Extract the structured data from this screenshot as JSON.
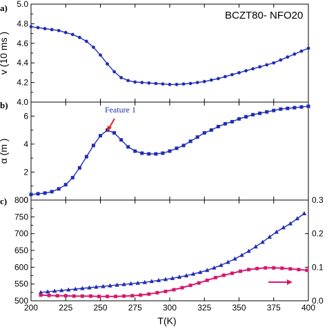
{
  "chart_data": [
    {
      "panel": "a)",
      "type": "line",
      "annotation": "BCZT80- NFO20",
      "ylabel": "v (10 ms )",
      "ylim": [
        4.0,
        5.0
      ],
      "yticks": [
        4.0,
        4.2,
        4.4,
        4.6,
        4.8,
        5.0
      ],
      "xlim": [
        200,
        400
      ],
      "series": [
        {
          "color": "#1f2db3",
          "marker": "circle",
          "x": [
            200,
            205,
            210,
            215,
            220,
            225,
            230,
            235,
            240,
            245,
            250,
            255,
            260,
            265,
            270,
            275,
            280,
            285,
            290,
            295,
            300,
            305,
            310,
            315,
            320,
            325,
            330,
            335,
            340,
            345,
            350,
            355,
            360,
            365,
            370,
            375,
            380,
            385,
            390,
            395,
            400
          ],
          "y": [
            4.77,
            4.76,
            4.75,
            4.74,
            4.73,
            4.71,
            4.69,
            4.66,
            4.62,
            4.56,
            4.48,
            4.39,
            4.31,
            4.25,
            4.22,
            4.205,
            4.2,
            4.195,
            4.19,
            4.185,
            4.18,
            4.18,
            4.185,
            4.19,
            4.2,
            4.21,
            4.225,
            4.24,
            4.26,
            4.28,
            4.3,
            4.32,
            4.34,
            4.36,
            4.38,
            4.4,
            4.43,
            4.46,
            4.49,
            4.52,
            4.55
          ]
        }
      ]
    },
    {
      "panel": "b)",
      "type": "line",
      "annotation": "Feature 1",
      "ylabel": "α (m )",
      "ylim": [
        0,
        7
      ],
      "yticks": [
        0,
        2,
        4,
        6
      ],
      "xlim": [
        200,
        400
      ],
      "series": [
        {
          "color": "#1f2db3",
          "marker": "square",
          "x": [
            200,
            205,
            210,
            215,
            220,
            225,
            230,
            235,
            240,
            245,
            250,
            255,
            260,
            265,
            270,
            275,
            280,
            285,
            290,
            295,
            300,
            305,
            310,
            315,
            320,
            325,
            330,
            335,
            340,
            345,
            350,
            355,
            360,
            365,
            370,
            375,
            380,
            385,
            390,
            395,
            400
          ],
          "y": [
            0.4,
            0.45,
            0.5,
            0.6,
            0.8,
            1.1,
            1.6,
            2.3,
            3.1,
            3.9,
            4.6,
            5.0,
            4.8,
            4.3,
            3.8,
            3.5,
            3.35,
            3.3,
            3.3,
            3.35,
            3.5,
            3.7,
            3.9,
            4.2,
            4.5,
            4.8,
            5.0,
            5.25,
            5.45,
            5.6,
            5.8,
            5.95,
            6.1,
            6.2,
            6.3,
            6.4,
            6.5,
            6.55,
            6.6,
            6.65,
            6.7
          ]
        }
      ]
    },
    {
      "panel": "c)",
      "type": "line",
      "xlabel": "T(K)",
      "xlim": [
        200,
        400
      ],
      "xticks": [
        200,
        225,
        250,
        275,
        300,
        325,
        350,
        375,
        400
      ],
      "ylim_left": [
        500,
        800
      ],
      "yticks_left": [
        500,
        550,
        600,
        650,
        700,
        750,
        800
      ],
      "ylim_right": [
        0.0,
        0.3
      ],
      "yticks_right": [
        "0.0",
        "0.1",
        "0.2",
        "0.3"
      ],
      "series": [
        {
          "color": "#1f2db3",
          "marker": "triangle",
          "axis": "left",
          "x": [
            207,
            212,
            217,
            222,
            227,
            232,
            237,
            242,
            247,
            252,
            257,
            262,
            267,
            272,
            277,
            282,
            287,
            292,
            297,
            302,
            307,
            312,
            317,
            322,
            327,
            332,
            337,
            342,
            347,
            352,
            357,
            362,
            367,
            372,
            377,
            382,
            387,
            392,
            397
          ],
          "y": [
            525,
            527,
            529,
            531,
            533,
            535,
            537,
            539,
            541,
            543,
            545,
            547,
            549,
            551,
            553,
            555,
            558,
            561,
            564,
            567,
            571,
            575,
            580,
            585,
            591,
            598,
            606,
            615,
            625,
            636,
            648,
            661,
            675,
            690,
            705,
            718,
            730,
            745,
            760
          ]
        },
        {
          "color": "#d6186e",
          "marker": "square",
          "axis": "right",
          "x": [
            207,
            213,
            219,
            225,
            231,
            237,
            243,
            249,
            255,
            261,
            267,
            273,
            279,
            285,
            291,
            297,
            303,
            309,
            315,
            321,
            327,
            333,
            339,
            345,
            351,
            357,
            363,
            369,
            375,
            381,
            387,
            393,
            399
          ],
          "y": [
            0.017,
            0.016,
            0.015,
            0.015,
            0.014,
            0.014,
            0.014,
            0.013,
            0.013,
            0.013,
            0.014,
            0.015,
            0.017,
            0.02,
            0.024,
            0.028,
            0.033,
            0.039,
            0.046,
            0.053,
            0.061,
            0.069,
            0.076,
            0.082,
            0.088,
            0.093,
            0.096,
            0.098,
            0.098,
            0.097,
            0.095,
            0.093,
            0.091
          ]
        }
      ]
    }
  ],
  "colors": {
    "blue": "#1f2db3",
    "magenta": "#d6186e",
    "feature_text": "#1f2db3",
    "arrow_red": "#e0221a"
  }
}
